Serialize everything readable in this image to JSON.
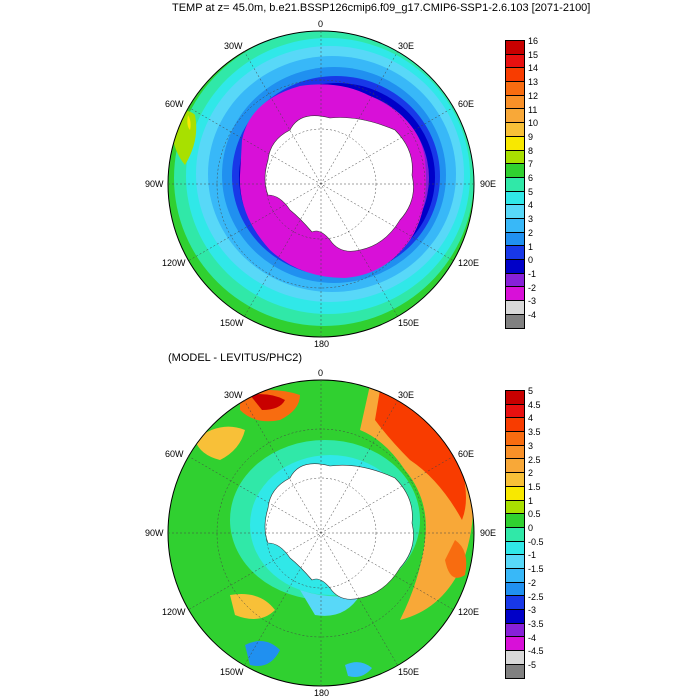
{
  "title": "TEMP at z=  45.0m, b.e21.BSSP126cmip6.f09_g17.CMIP6-SSP1-2.6.103 [2071-2100]",
  "subtitle": "(MODEL - LEVITUS/PHC2)",
  "longitude_labels": {
    "lon_0": "0",
    "lon_30e": "30E",
    "lon_60e": "60E",
    "lon_90e": "90E",
    "lon_120e": "120E",
    "lon_150e": "150E",
    "lon_180": "180",
    "lon_150w": "150W",
    "lon_120w": "120W",
    "lon_90w": "90W",
    "lon_60w": "60W",
    "lon_30w": "30W"
  },
  "colorbar_top": {
    "labels": [
      "16",
      "15",
      "14",
      "13",
      "12",
      "11",
      "10",
      "9",
      "8",
      "7",
      "6",
      "5",
      "4",
      "3",
      "2",
      "1",
      "0",
      "-1",
      "-2",
      "-3",
      "-4"
    ],
    "colors": [
      "#c80000",
      "#e81010",
      "#f83c00",
      "#f86c10",
      "#f89028",
      "#f8a838",
      "#f8c038",
      "#f8e800",
      "#a8e000",
      "#30d030",
      "#30e8a8",
      "#30e8e8",
      "#58d8f8",
      "#38b8f8",
      "#2090f0",
      "#1838e8",
      "#0000c8",
      "#8820d8",
      "#d810d8",
      "#d8d8d8",
      "#808080"
    ]
  },
  "colorbar_bottom": {
    "labels": [
      "5",
      "4.5",
      "4",
      "3.5",
      "3",
      "2.5",
      "2",
      "1.5",
      "1",
      "0.5",
      "0",
      "-0.5",
      "-1",
      "-1.5",
      "-2",
      "-2.5",
      "-3",
      "-3.5",
      "-4",
      "-4.5",
      "-5"
    ],
    "colors": [
      "#c80000",
      "#e81010",
      "#f83c00",
      "#f86c10",
      "#f89028",
      "#f8a838",
      "#f8c038",
      "#f8e800",
      "#a8e000",
      "#30d030",
      "#30e8a8",
      "#30e8e8",
      "#58d8f8",
      "#38b8f8",
      "#2090f0",
      "#1838e8",
      "#0000c8",
      "#8820d8",
      "#d810d8",
      "#d8d8d8",
      "#808080"
    ]
  }
}
